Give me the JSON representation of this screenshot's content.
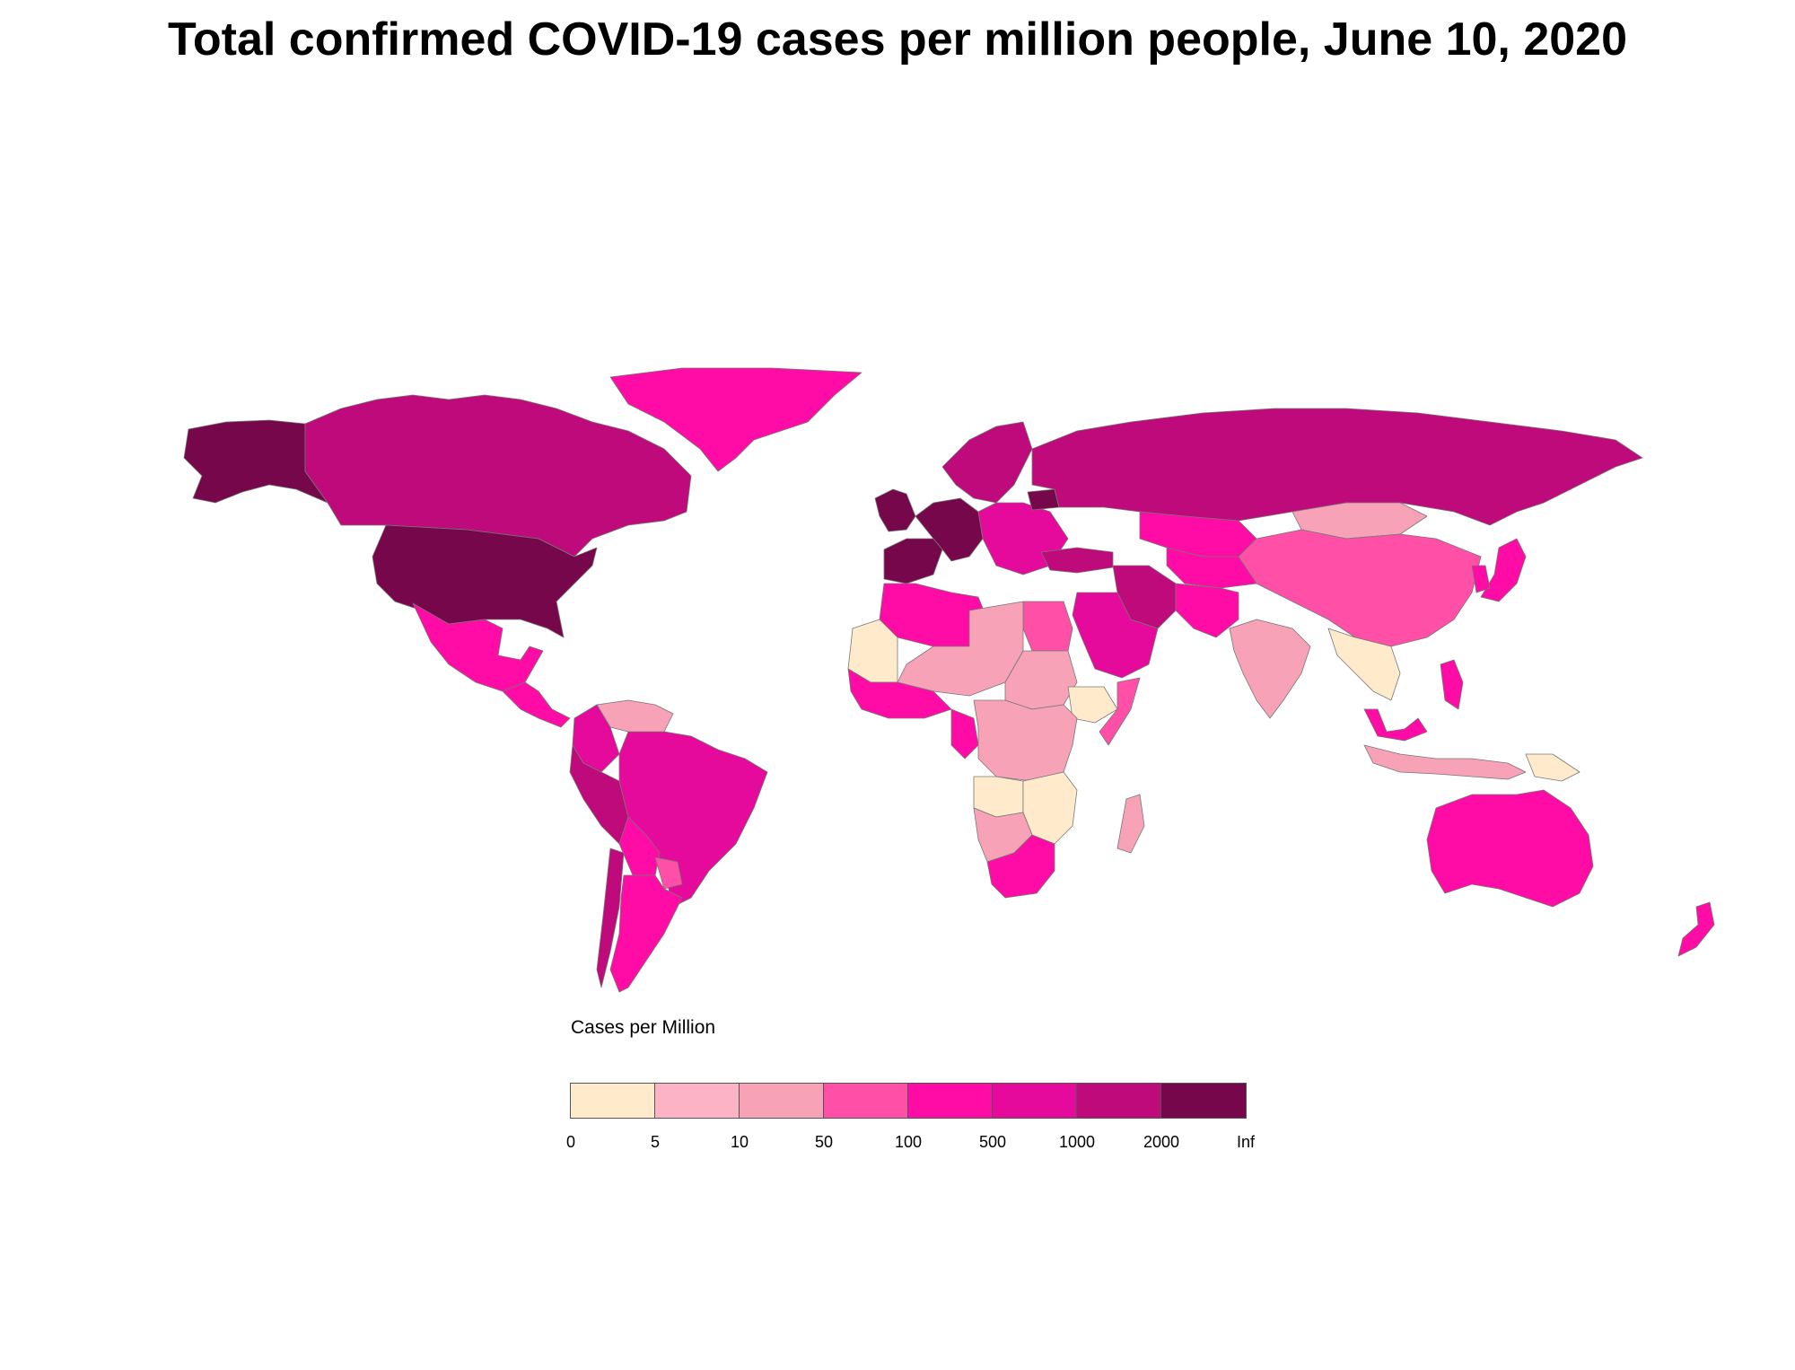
{
  "title": "Total confirmed COVID-19 cases per million people, June 10, 2020",
  "legend": {
    "title": "Cases per Million",
    "breaks": [
      "0",
      "5",
      "10",
      "50",
      "100",
      "500",
      "1000",
      "2000",
      "Inf"
    ],
    "colors": [
      "#FFEBCC",
      "#FCB3C6",
      "#F8A2B8",
      "#FF4FA6",
      "#FF0BA5",
      "#E50A9B",
      "#BE0A7A",
      "#77074B"
    ]
  },
  "map": {
    "regions": [
      {
        "name": "alaska",
        "class": 7
      },
      {
        "name": "canada",
        "class": 6
      },
      {
        "name": "usa",
        "class": 7
      },
      {
        "name": "mexico",
        "class": 4
      },
      {
        "name": "central-america",
        "class": 4
      },
      {
        "name": "greenland",
        "class": 4
      },
      {
        "name": "venezuela",
        "class": 2
      },
      {
        "name": "colombia",
        "class": 5
      },
      {
        "name": "peru",
        "class": 6
      },
      {
        "name": "brazil",
        "class": 5
      },
      {
        "name": "bolivia",
        "class": 4
      },
      {
        "name": "paraguay",
        "class": 3
      },
      {
        "name": "chile",
        "class": 6
      },
      {
        "name": "argentina",
        "class": 4
      },
      {
        "name": "iberia",
        "class": 7
      },
      {
        "name": "uk-ireland",
        "class": 7
      },
      {
        "name": "western-europe",
        "class": 7
      },
      {
        "name": "scandinavia",
        "class": 6
      },
      {
        "name": "eastern-europe",
        "class": 5
      },
      {
        "name": "belarus",
        "class": 7
      },
      {
        "name": "russia",
        "class": 6
      },
      {
        "name": "kazakhstan",
        "class": 4
      },
      {
        "name": "mongolia",
        "class": 2
      },
      {
        "name": "china",
        "class": 3
      },
      {
        "name": "iran",
        "class": 6
      },
      {
        "name": "turkey",
        "class": 6
      },
      {
        "name": "central-asia",
        "class": 4
      },
      {
        "name": "pakistan-afghanistan",
        "class": 4
      },
      {
        "name": "arabia",
        "class": 5
      },
      {
        "name": "india",
        "class": 2
      },
      {
        "name": "southeast-asia",
        "class": 0
      },
      {
        "name": "philippines",
        "class": 4
      },
      {
        "name": "malaysia",
        "class": 4
      },
      {
        "name": "indonesia",
        "class": 2
      },
      {
        "name": "papua-new-guinea",
        "class": 0
      },
      {
        "name": "japan",
        "class": 4
      },
      {
        "name": "korea",
        "class": 4
      },
      {
        "name": "north-africa",
        "class": 4
      },
      {
        "name": "egypt",
        "class": 3
      },
      {
        "name": "sahel",
        "class": 2
      },
      {
        "name": "west-africa-coast",
        "class": 4
      },
      {
        "name": "mali",
        "class": 0
      },
      {
        "name": "sudan",
        "class": 2
      },
      {
        "name": "ethiopia",
        "class": 0
      },
      {
        "name": "somalia",
        "class": 3
      },
      {
        "name": "gabon",
        "class": 4
      },
      {
        "name": "central-africa",
        "class": 2
      },
      {
        "name": "angola",
        "class": 0
      },
      {
        "name": "zambia-mozambique",
        "class": 0
      },
      {
        "name": "namibia-botswana",
        "class": 2
      },
      {
        "name": "south-africa",
        "class": 4
      },
      {
        "name": "madagascar",
        "class": 2
      },
      {
        "name": "australia",
        "class": 4
      },
      {
        "name": "new-zealand",
        "class": 4
      }
    ]
  }
}
